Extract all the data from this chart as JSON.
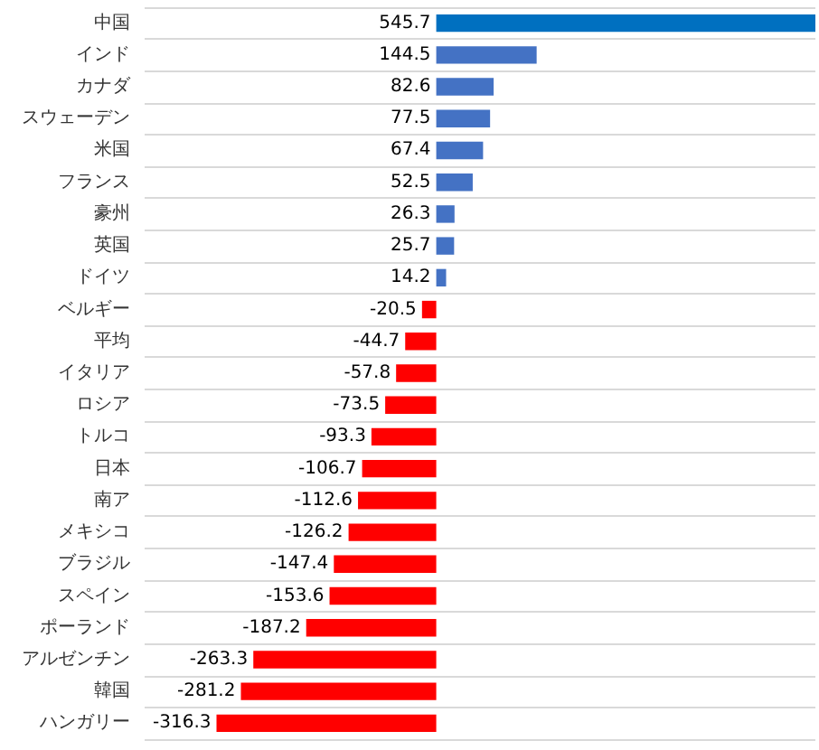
{
  "chart_data": {
    "type": "bar",
    "orientation": "horizontal",
    "categories": [
      "中国",
      "インド",
      "カナダ",
      "スウェーデン",
      "米国",
      "フランス",
      "豪州",
      "英国",
      "ドイツ",
      "ベルギー",
      "平均",
      "イタリア",
      "ロシア",
      "トルコ",
      "日本",
      "南ア",
      "メキシコ",
      "ブラジル",
      "スペイン",
      "ポーランド",
      "アルゼンチン",
      "韓国",
      "ハンガリー"
    ],
    "values": [
      545.7,
      144.5,
      82.6,
      77.5,
      67.4,
      52.5,
      26.3,
      25.7,
      14.2,
      -20.5,
      -44.7,
      -57.8,
      -73.5,
      -93.3,
      -106.7,
      -112.6,
      -126.2,
      -147.4,
      -153.6,
      -187.2,
      -263.3,
      -281.2,
      -316.3
    ],
    "colors": [
      "#0070c0",
      "#4472c4",
      "#4472c4",
      "#4472c4",
      "#4472c4",
      "#4472c4",
      "#4472c4",
      "#4472c4",
      "#4472c4",
      "#ff0000",
      "#ff0000",
      "#ff0000",
      "#ff0000",
      "#ff0000",
      "#ff0000",
      "#ff0000",
      "#ff0000",
      "#ff0000",
      "#ff0000",
      "#ff0000",
      "#ff0000",
      "#ff0000",
      "#ff0000"
    ],
    "data_labels": true,
    "grid": "y"
  }
}
